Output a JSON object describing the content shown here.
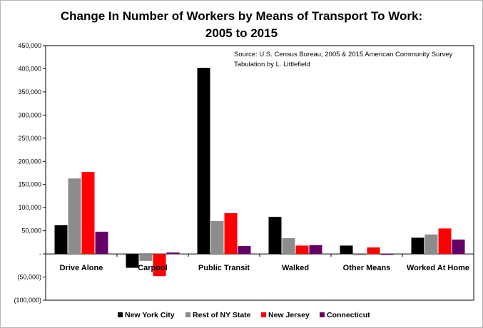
{
  "chart_data": {
    "type": "bar",
    "title_line1": "Change In Number of Workers by Means of Transport To Work:",
    "title_line2": "2005 to 2015",
    "xlabel": "",
    "ylabel": "",
    "ylim": [
      -100000,
      450000
    ],
    "y_ticks": [
      450000,
      400000,
      350000,
      300000,
      250000,
      200000,
      150000,
      100000,
      50000,
      0,
      -50000,
      -100000
    ],
    "y_tick_labels": [
      "450,000",
      "400,000",
      "350,000",
      "300,000",
      "250,000",
      "200,000",
      "150,000",
      "100,000",
      "50,000",
      "-",
      "(50,000)",
      "(100,000)"
    ],
    "categories": [
      "Drive Alone",
      "Carpool",
      "Public Transit",
      "Walked",
      "Other Means",
      "Worked At Home"
    ],
    "series": [
      {
        "name": "New York City",
        "color": "#000000",
        "values": [
          62000,
          -30000,
          402000,
          80000,
          18000,
          35000
        ]
      },
      {
        "name": "Rest of NY State",
        "color": "#8c8c8c",
        "values": [
          163000,
          -15000,
          71000,
          34000,
          -3000,
          42000
        ]
      },
      {
        "name": "New Jersey",
        "color": "#ff0000",
        "values": [
          177000,
          -48000,
          88000,
          18000,
          14000,
          55000
        ]
      },
      {
        "name": "Connecticut",
        "color": "#660066",
        "values": [
          48000,
          3000,
          17000,
          19000,
          -2000,
          31000
        ]
      }
    ],
    "annotation_line1": "Source:  U.S. Census Bureau, 2005 & 2015 American Community Survey",
    "annotation_line2": "Tabulation by L. Littlefield",
    "legend_position": "bottom",
    "grid": false
  }
}
